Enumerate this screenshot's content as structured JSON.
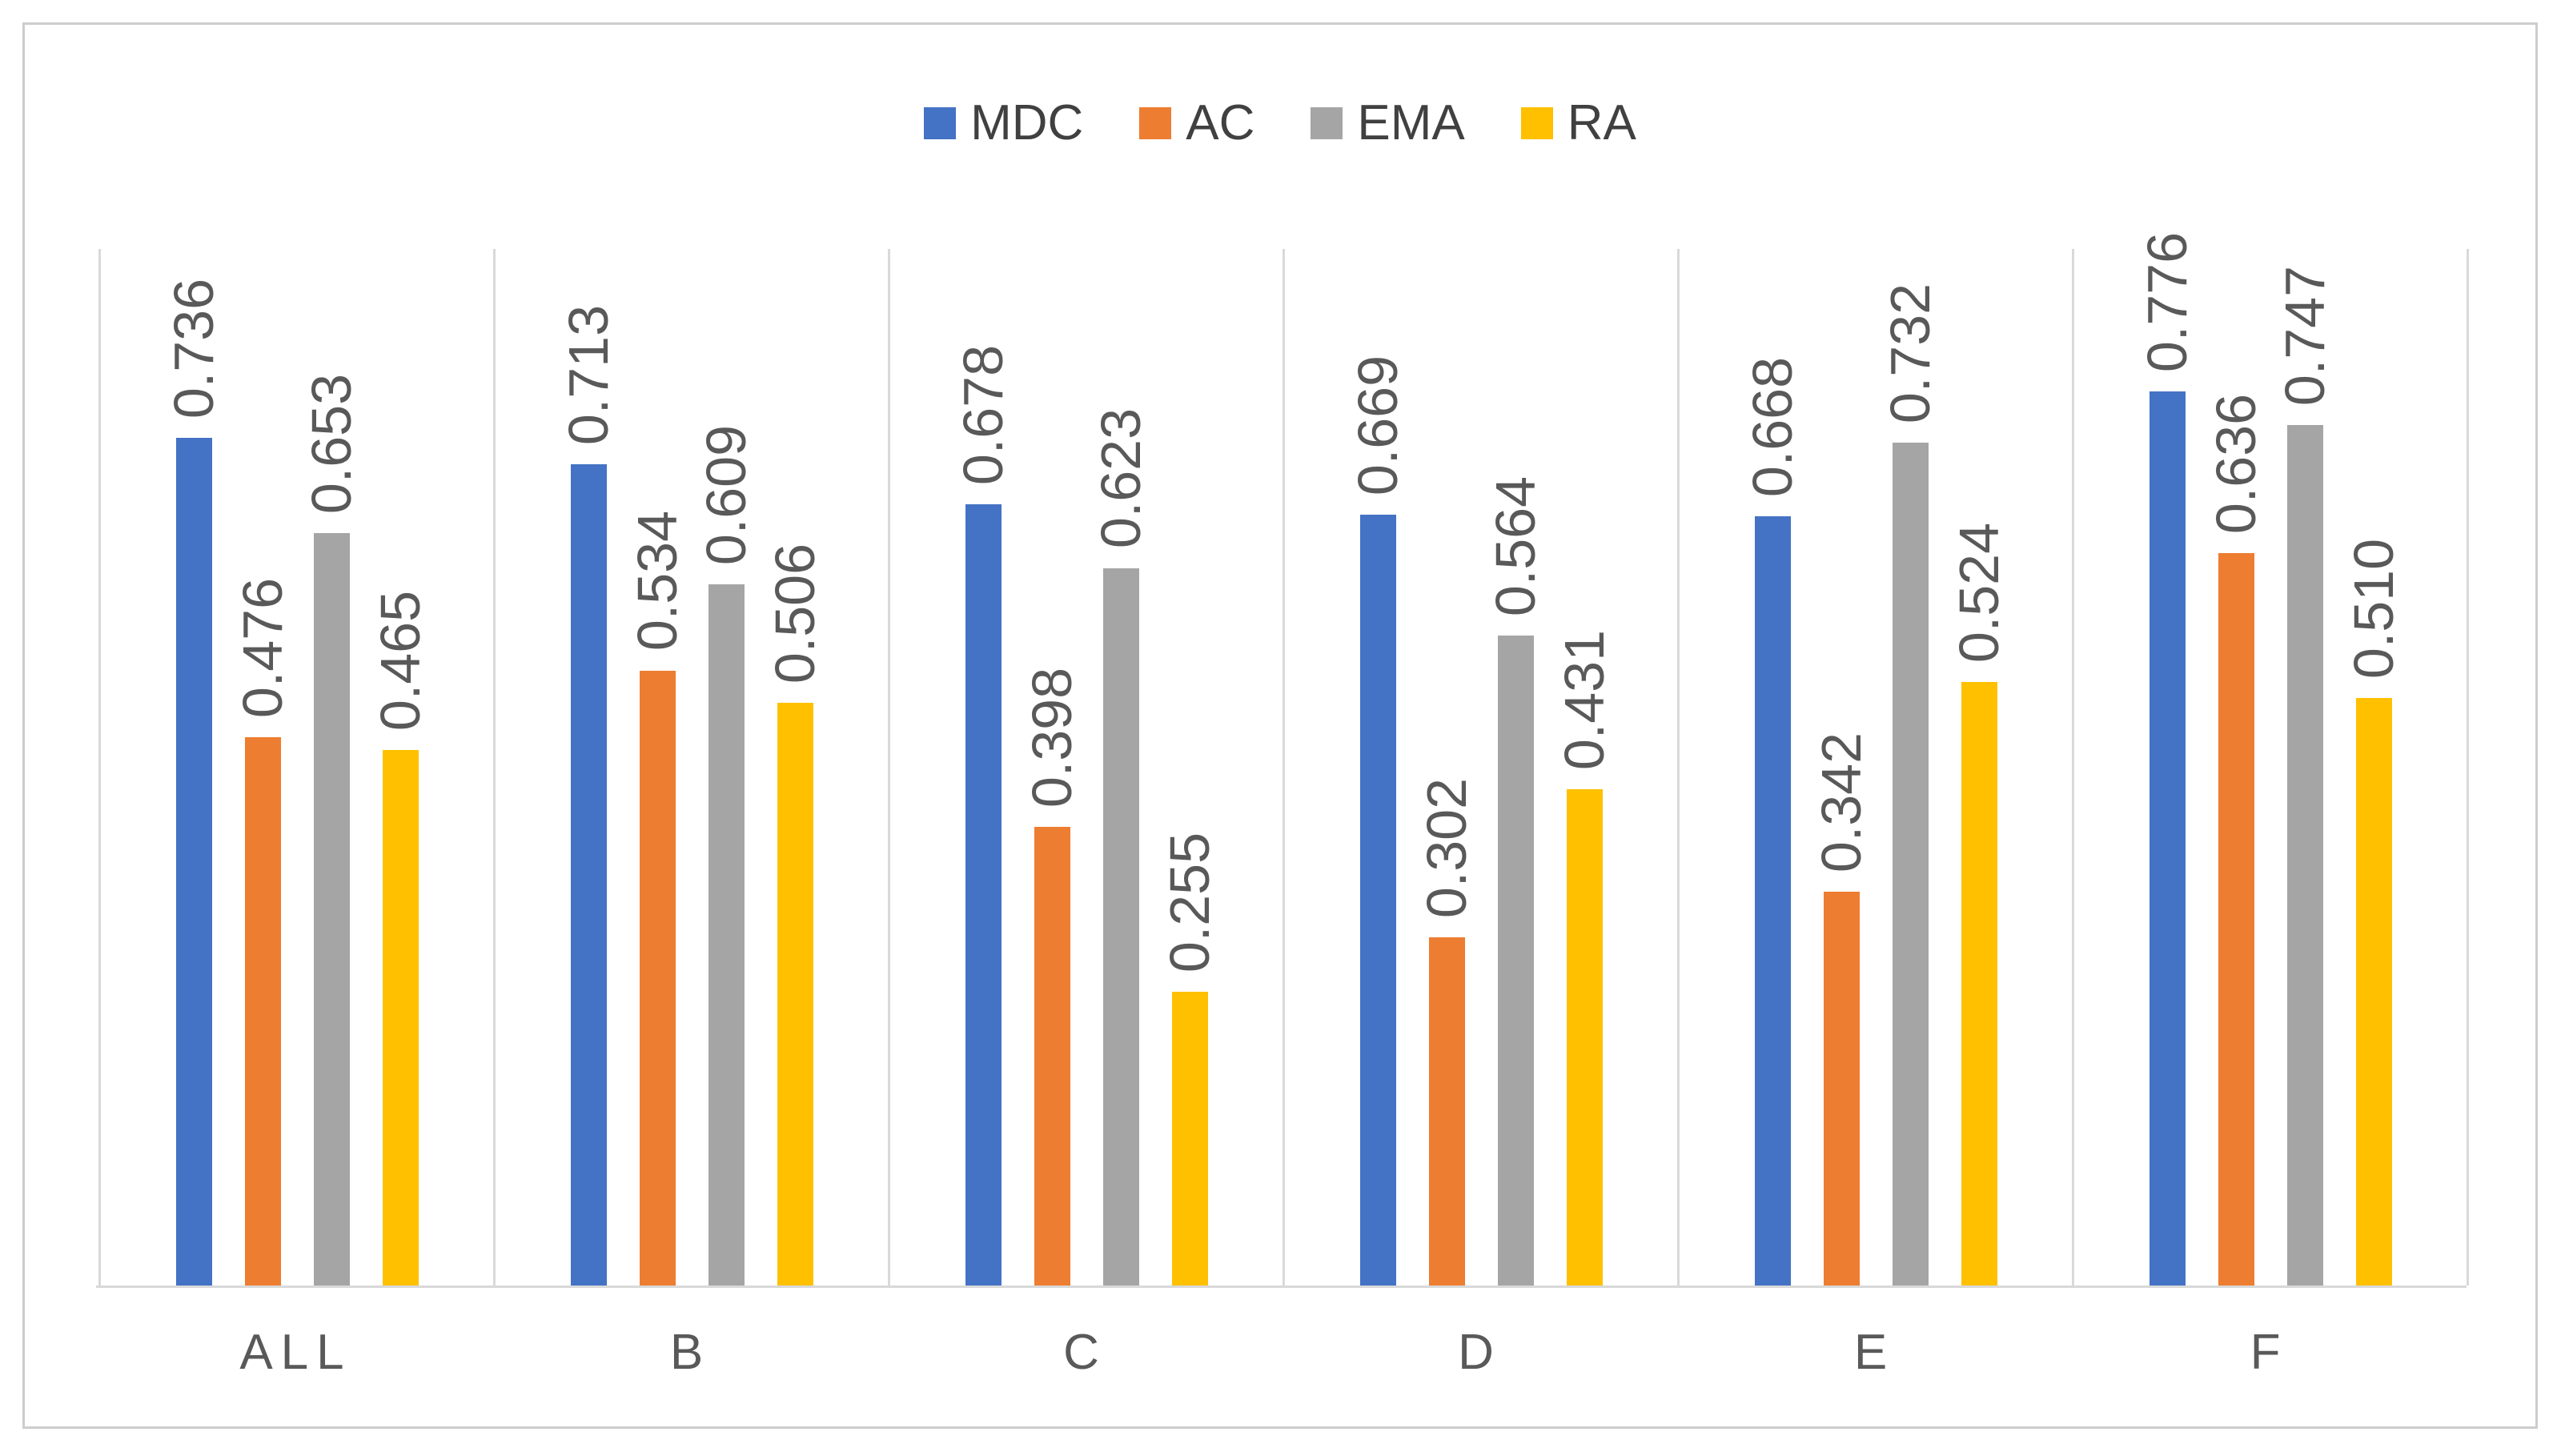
{
  "chart_data": {
    "type": "bar",
    "title": "",
    "categories": [
      "ALL",
      "B",
      "C",
      "D",
      "E",
      "F"
    ],
    "series": [
      {
        "name": "MDC",
        "color": "#4472C4",
        "values": [
          0.736,
          0.713,
          0.678,
          0.669,
          0.668,
          0.776
        ],
        "labels": [
          "0.736",
          "0.713",
          "0.678",
          "0.669",
          "0.668",
          "0.776"
        ]
      },
      {
        "name": "AC",
        "color": "#ED7D31",
        "values": [
          0.476,
          0.534,
          0.398,
          0.302,
          0.342,
          0.636
        ],
        "labels": [
          "0.476",
          "0.534",
          "0.398",
          "0.302",
          "0.342",
          "0.636"
        ]
      },
      {
        "name": "EMA",
        "color": "#A5A5A5",
        "values": [
          0.653,
          0.609,
          0.623,
          0.564,
          0.732,
          0.747
        ],
        "labels": [
          "0.653",
          "0.609",
          "0.623",
          "0.564",
          "0.732",
          "0.747"
        ]
      },
      {
        "name": "RA",
        "color": "#FFC000",
        "values": [
          0.465,
          0.506,
          0.255,
          0.431,
          0.524,
          0.51
        ],
        "labels": [
          "0.465",
          "0.506",
          "0.255",
          "0.431",
          "0.524",
          "0.510"
        ]
      }
    ],
    "xlabel": "",
    "ylabel": "",
    "ylim": [
      0,
      0.9
    ],
    "grid": "vertical-panel-separators-only",
    "legend_position": "top-center",
    "value_labels": "rotated-90-ccw-above-bars"
  },
  "colors": {
    "frame_border": "#CDCDCD",
    "panel_separator": "#D9D9D9",
    "axis_line": "#D9D9D9",
    "value_label_text": "#595959",
    "category_label_text": "#595959",
    "legend_text": "#404040",
    "background": "#FFFFFF"
  }
}
